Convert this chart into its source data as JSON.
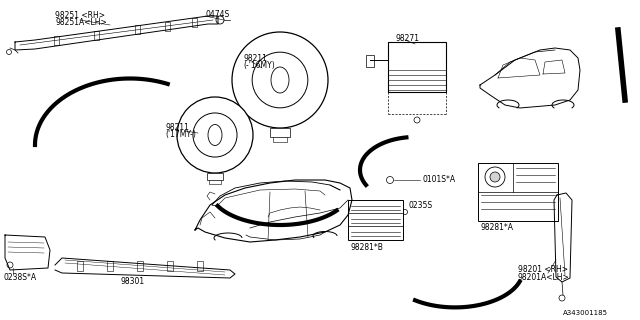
{
  "bg_color": "#ffffff",
  "line_color": "#000000",
  "text_color": "#000000",
  "parts": {
    "curtain_label1": "98251 <RH>",
    "curtain_label2": "98251A<LH>",
    "bolt_label": "0474S",
    "airbag16_label1": "98211",
    "airbag16_label2": "(-'16MY)",
    "airbag17_label1": "98211",
    "airbag17_label2": "('17MY-)",
    "module_label": "98271",
    "panel_label": "0238S*A",
    "bar_label": "98301",
    "labelB": "98281*B",
    "nut_label": "0101S*A",
    "sensor_label": "0235S",
    "labelA": "98281*A",
    "side_label1": "98201 <RH>",
    "side_label2": "98201A<LH>",
    "doc_num": "A343001185"
  }
}
